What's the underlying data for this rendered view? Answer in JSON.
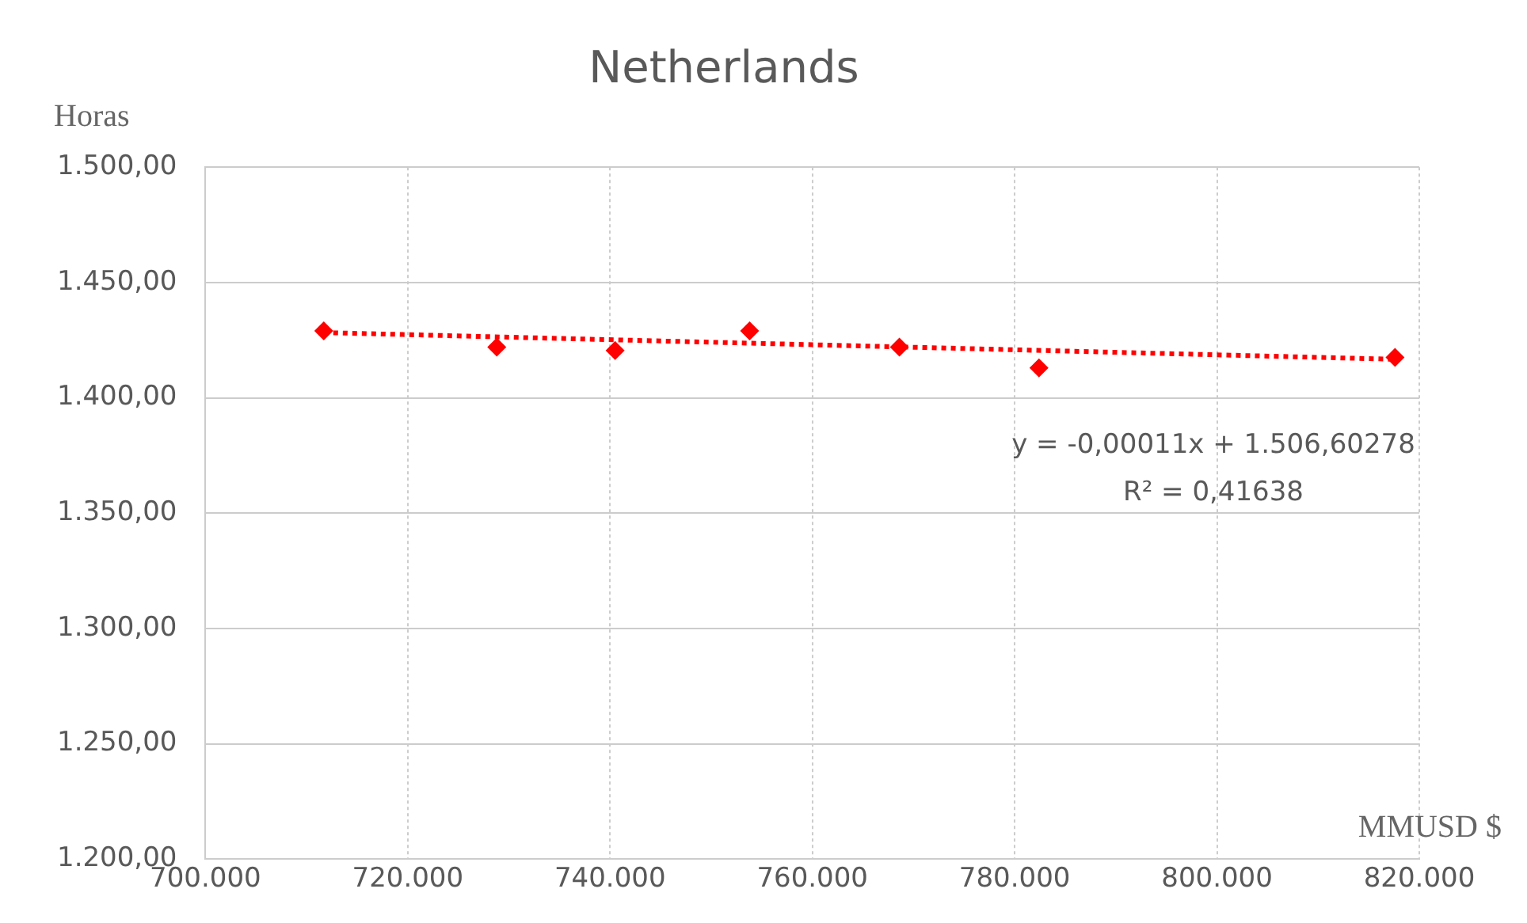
{
  "chart_data": {
    "type": "scatter",
    "title": "Netherlands",
    "xlabel": "MMUSD $",
    "ylabel": "Horas",
    "series": [
      {
        "color": "#ff0000",
        "x": [
          711700,
          728800,
          740500,
          753800,
          768600,
          782400,
          817600
        ],
        "values": [
          1429,
          1422,
          1420.5,
          1429,
          1422,
          1413,
          1417.5
        ],
        "marker": "diamond"
      },
      {
        "type": "line",
        "color": "#ff0000",
        "x": [
          711700,
          817600
        ],
        "values": [
          1428.3,
          1416.7
        ],
        "line_style": "dotted",
        "marker": "none"
      }
    ],
    "xlim": [
      700000,
      820000
    ],
    "ylim": [
      1200,
      1500
    ],
    "xticks": [
      {
        "value": 700000,
        "label": "700.000"
      },
      {
        "value": 720000,
        "label": "720.000"
      },
      {
        "value": 740000,
        "label": "740.000"
      },
      {
        "value": 760000,
        "label": "760.000"
      },
      {
        "value": 780000,
        "label": "780.000"
      },
      {
        "value": 800000,
        "label": "800.000"
      },
      {
        "value": 820000,
        "label": "820.000"
      }
    ],
    "yticks": [
      {
        "value": 1200,
        "label": "1.200,00"
      },
      {
        "value": 1250,
        "label": "1.250,00"
      },
      {
        "value": 1300,
        "label": "1.300,00"
      },
      {
        "value": 1350,
        "label": "1.350,00"
      },
      {
        "value": 1400,
        "label": "1.400,00"
      },
      {
        "value": 1450,
        "label": "1.450,00"
      },
      {
        "value": 1500,
        "label": "1.500,00"
      }
    ],
    "grid": true,
    "legend": false,
    "annotations": [
      "y = -0,00011x + 1.506,60278",
      "R² = 0,41638"
    ]
  }
}
